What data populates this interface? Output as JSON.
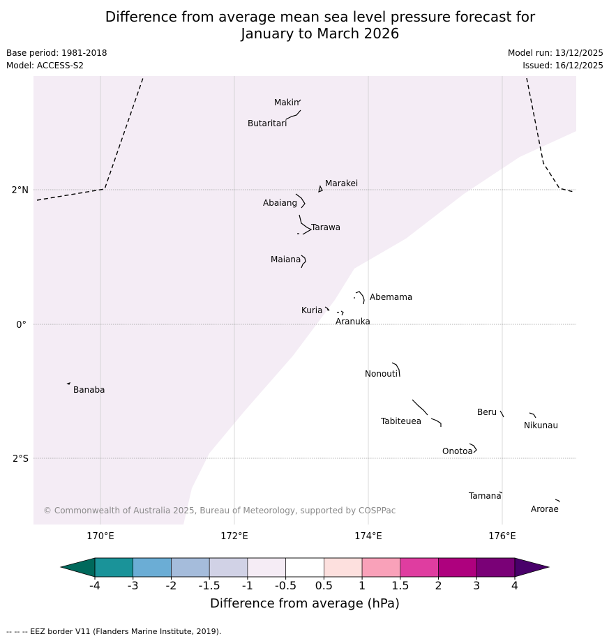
{
  "title": {
    "line1": "Difference from average mean sea level pressure forecast for",
    "line2": "January to March 2026"
  },
  "meta": {
    "base_period": "Base period: 1981-2018",
    "model": "Model: ACCESS-S2",
    "model_run": "Model run: 13/12/2025",
    "issued": "Issued: 16/12/2025"
  },
  "map": {
    "lon_labels": [
      "170°E",
      "172°E",
      "174°E",
      "176°E"
    ],
    "lat_labels": [
      "2°N",
      "0°",
      "2°S"
    ],
    "copyright": "© Commonwealth of Australia 2025, Bureau of Meteorology, supported by COSPPac",
    "shade_color": "#f4ecf5",
    "places": [
      "Makin",
      "Butaritari",
      "Marakei",
      "Abaiang",
      "Tarawa",
      "Maiana",
      "Abemama",
      "Kuria",
      "Aranuka",
      "Banaba",
      "Nonouti",
      "Tabiteuea",
      "Beru",
      "Nikunau",
      "Onotoa",
      "Tamana",
      "Arorae"
    ]
  },
  "colorbar": {
    "label": "Difference from average (hPa)",
    "ticks": [
      "-4",
      "-3",
      "-2",
      "-1.5",
      "-1",
      "-0.5",
      "0.5",
      "1",
      "1.5",
      "2",
      "3",
      "4"
    ],
    "colors": [
      "#1a9399",
      "#6badd5",
      "#a5bcdb",
      "#d1d2e6",
      "#f5ecf5",
      "#ffffff",
      "#fde0de",
      "#f9a1b9",
      "#df3da0",
      "#ae017e",
      "#7a0177"
    ],
    "low_color": "#00695c",
    "high_color": "#49006a"
  },
  "footer": "--  --  -- EEZ border V11 (Flanders Marine Institute, 2019)."
}
